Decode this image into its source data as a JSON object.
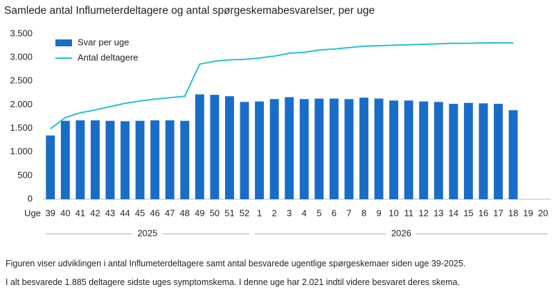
{
  "chart_data": {
    "type": "bar_line",
    "title": "Samlede antal Influmeterdeltagere og antal spørgeskemabesvarelser, per uge",
    "x_label": "Uge",
    "categories": [
      "39",
      "40",
      "41",
      "42",
      "43",
      "44",
      "45",
      "46",
      "47",
      "48",
      "49",
      "50",
      "51",
      "52",
      "1",
      "2",
      "3",
      "4",
      "5",
      "6",
      "7",
      "8",
      "9",
      "10",
      "11",
      "12",
      "13",
      "14",
      "15",
      "16",
      "17",
      "18",
      "19",
      "20"
    ],
    "years": [
      "2025",
      "2026"
    ],
    "series": [
      {
        "name": "Svar per uge",
        "type": "bar",
        "color": "#1a6dc6",
        "values": [
          1350,
          1660,
          1670,
          1670,
          1660,
          1650,
          1660,
          1670,
          1670,
          1660,
          2220,
          2210,
          2180,
          2060,
          2070,
          2120,
          2160,
          2120,
          2130,
          2130,
          2120,
          2150,
          2130,
          2090,
          2090,
          2070,
          2060,
          2020,
          2040,
          2030,
          2020,
          1885,
          null,
          null
        ]
      },
      {
        "name": "Antal deltagere",
        "type": "line",
        "color": "#22c1cf",
        "values": [
          1490,
          1730,
          1830,
          1890,
          1960,
          2030,
          2080,
          2120,
          2150,
          2180,
          2860,
          2920,
          2950,
          2960,
          2990,
          3030,
          3090,
          3110,
          3160,
          3180,
          3210,
          3240,
          3250,
          3260,
          3270,
          3280,
          3290,
          3300,
          3300,
          3310,
          3310,
          3310,
          null,
          null
        ]
      }
    ],
    "ylim": [
      0,
      3500
    ],
    "yticks": [
      0,
      {
        "value": 500,
        "label": "500"
      },
      {
        "value": 1000,
        "label": "1.000"
      },
      {
        "value": 1500,
        "label": "1.500"
      },
      {
        "value": 2000,
        "label": "2.000"
      },
      {
        "value": 2500,
        "label": "2.500"
      },
      {
        "value": 3000,
        "label": "3.000"
      },
      {
        "value": 3500,
        "label": "3.500"
      }
    ],
    "legend": "upper left",
    "notes": [
      "Figuren viser udviklingen i antal Influmeterdeltagere  samt antal besvarede ugentlige spørgeskemaer siden uge 39-2025.",
      "I alt besvarede 1.885 deltagere sidste uges symptomskema.  I denne uge har 2.021 indtil videre besvaret deres skema."
    ]
  }
}
